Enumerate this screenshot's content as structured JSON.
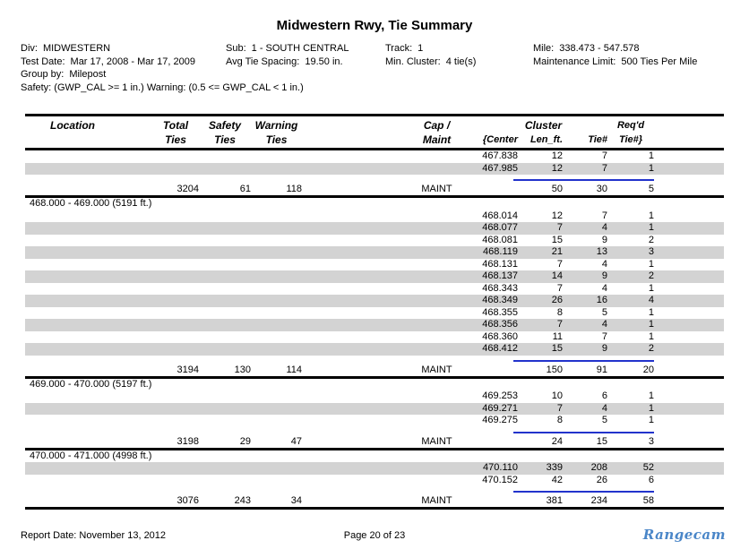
{
  "title": "Midwestern Rwy, Tie Summary",
  "colors": {
    "row_shade": "#d3d3d3",
    "rule_blue": "#2233cc",
    "logo_blue": "#4a86c8"
  },
  "info": {
    "div_label": "Div:",
    "div_value": "MIDWESTERN",
    "test_date_label": "Test Date:",
    "test_date_value": "Mar 17, 2008 - Mar 17, 2009",
    "group_by_label": "Group by:",
    "group_by_value": "Milepost",
    "safety_warning_line": "Safety: (GWP_CAL >= 1 in.)  Warning: (0.5 <= GWP_CAL < 1 in.)",
    "sub_label": "Sub:",
    "sub_value": "1 - SOUTH CENTRAL",
    "avg_tie_spacing_label": "Avg Tie Spacing:",
    "avg_tie_spacing_value": "19.50 in.",
    "track_label": "Track:",
    "track_value": "1",
    "min_cluster_label": "Min. Cluster:",
    "min_cluster_value": "4 tie(s)",
    "mile_label": "Mile:",
    "mile_value": "338.473 - 547.578",
    "maintenance_limit_label": "Maintenance Limit:",
    "maintenance_limit_value": "500 Ties Per Mile"
  },
  "table": {
    "headers": {
      "location": "Location",
      "total_line1": "Total",
      "total_line2": "Ties",
      "safety_line1": "Safety",
      "safety_line2": "Ties",
      "warning_line1": "Warning",
      "warning_line2": "Ties",
      "cap_line1": "Cap /",
      "cap_line2": "Maint",
      "cluster": "Cluster",
      "center": "{Center",
      "len": "Len_ft.",
      "tie": "Tie#",
      "reqd_line1": "Req'd",
      "reqd_line2": "Tie#}"
    },
    "sections": [
      {
        "location": null,
        "rows": [
          {
            "center": "467.838",
            "len": "12",
            "tie": "7",
            "reqd": "1",
            "shaded": false
          },
          {
            "center": "467.985",
            "len": "12",
            "tie": "7",
            "reqd": "1",
            "shaded": true
          }
        ],
        "summary": {
          "total": "3204",
          "safety": "61",
          "warning": "118",
          "cap": "MAINT",
          "len": "50",
          "tie": "30",
          "reqd": "5"
        }
      },
      {
        "location": "468.000 - 469.000 (5191 ft.)",
        "rows": [
          {
            "center": "468.014",
            "len": "12",
            "tie": "7",
            "reqd": "1",
            "shaded": false
          },
          {
            "center": "468.077",
            "len": "7",
            "tie": "4",
            "reqd": "1",
            "shaded": true
          },
          {
            "center": "468.081",
            "len": "15",
            "tie": "9",
            "reqd": "2",
            "shaded": false
          },
          {
            "center": "468.119",
            "len": "21",
            "tie": "13",
            "reqd": "3",
            "shaded": true
          },
          {
            "center": "468.131",
            "len": "7",
            "tie": "4",
            "reqd": "1",
            "shaded": false
          },
          {
            "center": "468.137",
            "len": "14",
            "tie": "9",
            "reqd": "2",
            "shaded": true
          },
          {
            "center": "468.343",
            "len": "7",
            "tie": "4",
            "reqd": "1",
            "shaded": false
          },
          {
            "center": "468.349",
            "len": "26",
            "tie": "16",
            "reqd": "4",
            "shaded": true
          },
          {
            "center": "468.355",
            "len": "8",
            "tie": "5",
            "reqd": "1",
            "shaded": false
          },
          {
            "center": "468.356",
            "len": "7",
            "tie": "4",
            "reqd": "1",
            "shaded": true
          },
          {
            "center": "468.360",
            "len": "11",
            "tie": "7",
            "reqd": "1",
            "shaded": false
          },
          {
            "center": "468.412",
            "len": "15",
            "tie": "9",
            "reqd": "2",
            "shaded": true
          }
        ],
        "summary": {
          "total": "3194",
          "safety": "130",
          "warning": "114",
          "cap": "MAINT",
          "len": "150",
          "tie": "91",
          "reqd": "20"
        }
      },
      {
        "location": "469.000 - 470.000 (5197 ft.)",
        "rows": [
          {
            "center": "469.253",
            "len": "10",
            "tie": "6",
            "reqd": "1",
            "shaded": false
          },
          {
            "center": "469.271",
            "len": "7",
            "tie": "4",
            "reqd": "1",
            "shaded": true
          },
          {
            "center": "469.275",
            "len": "8",
            "tie": "5",
            "reqd": "1",
            "shaded": false
          }
        ],
        "summary": {
          "total": "3198",
          "safety": "29",
          "warning": "47",
          "cap": "MAINT",
          "len": "24",
          "tie": "15",
          "reqd": "3"
        }
      },
      {
        "location": "470.000 - 471.000 (4998 ft.)",
        "rows": [
          {
            "center": "470.110",
            "len": "339",
            "tie": "208",
            "reqd": "52",
            "shaded": true
          },
          {
            "center": "470.152",
            "len": "42",
            "tie": "26",
            "reqd": "6",
            "shaded": false
          }
        ],
        "summary": {
          "total": "3076",
          "safety": "243",
          "warning": "34",
          "cap": "MAINT",
          "len": "381",
          "tie": "234",
          "reqd": "58"
        }
      }
    ]
  },
  "footer": {
    "report_date": "Report Date: November 13, 2012",
    "page_info": "Page 20 of 23",
    "logo_text": "Rangecam"
  }
}
